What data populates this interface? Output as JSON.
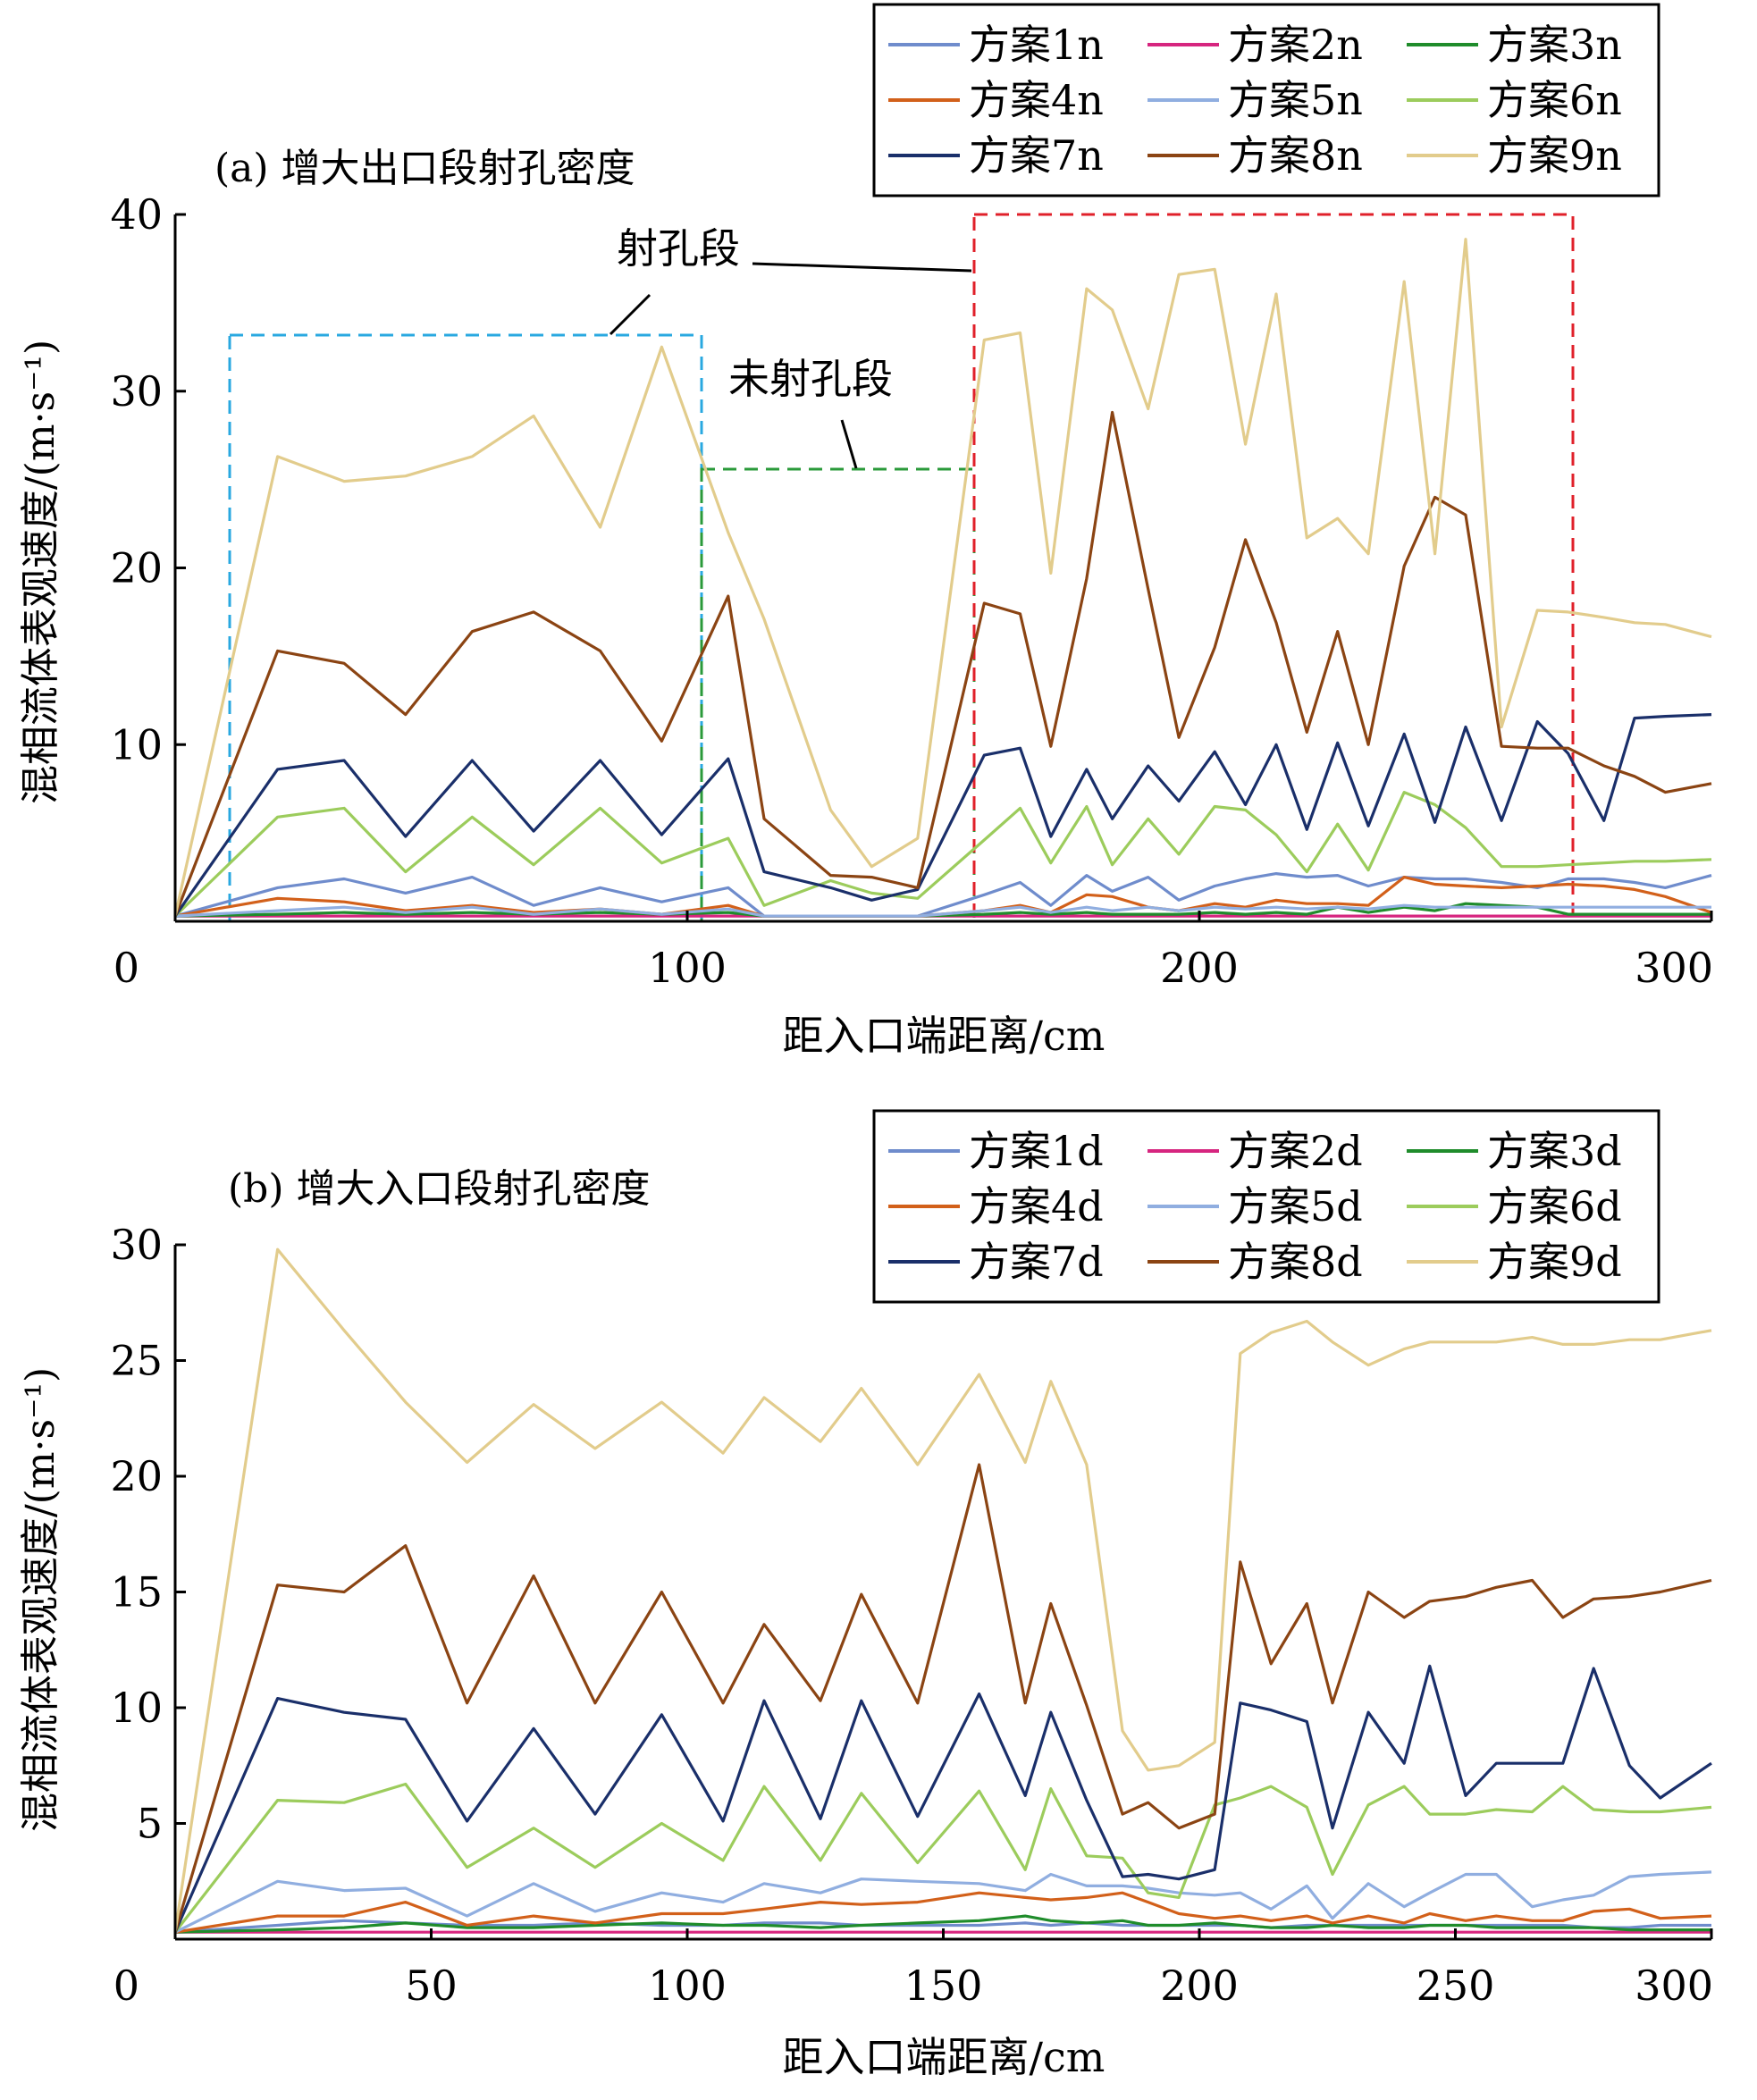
{
  "chart_data": [
    {
      "type": "line",
      "title": "(a) 增大出口段射孔密度",
      "xlabel": "距入口端距离/cm",
      "ylabel": "混相流体表观速度/(m·s⁻¹)",
      "xlim": [
        0,
        300
      ],
      "ylim": [
        0,
        40
      ],
      "xticks": [
        0,
        100,
        200,
        300
      ],
      "yticks": [
        10,
        20,
        30,
        40
      ],
      "grid": false,
      "legend_position": "top-right",
      "annotations": {
        "perforated": "射孔段",
        "unperforated": "未射孔段"
      },
      "regions": [
        {
          "label": "射孔段",
          "x": [
            11,
            103
          ],
          "y": [
            0,
            33.2
          ],
          "color": "#29a8e0"
        },
        {
          "label": "未射孔段",
          "x": [
            103,
            156
          ],
          "y": [
            0,
            25.6
          ],
          "color": "#2a9a3a"
        },
        {
          "label": "射孔段",
          "x": [
            156,
            273
          ],
          "y": [
            0,
            40
          ],
          "color": "#e0202a"
        }
      ],
      "x": [
        0,
        20,
        33,
        45,
        58,
        70,
        83,
        95,
        108,
        115,
        128,
        136,
        145,
        158,
        165,
        171,
        178,
        183,
        190,
        196,
        203,
        209,
        215,
        221,
        227,
        233,
        240,
        246,
        252,
        259,
        266,
        272,
        279,
        285,
        291,
        300
      ],
      "series": [
        {
          "name": "方案1n",
          "color": "#6f8ccc",
          "values": [
            0.3,
            1.9,
            2.4,
            1.6,
            2.5,
            0.9,
            1.9,
            1.1,
            1.9,
            0.3,
            0.3,
            0.3,
            0.3,
            1.5,
            2.2,
            0.9,
            2.6,
            1.7,
            2.5,
            1.2,
            2.0,
            2.4,
            2.7,
            2.5,
            2.6,
            2.0,
            2.5,
            2.4,
            2.4,
            2.2,
            1.9,
            2.4,
            2.4,
            2.2,
            1.9,
            2.6
          ]
        },
        {
          "name": "方案2n",
          "color": "#d6257f",
          "values": [
            0.3,
            0.3,
            0.3,
            0.3,
            0.3,
            0.3,
            0.3,
            0.3,
            0.3,
            0.3,
            0.3,
            0.3,
            0.3,
            0.3,
            0.3,
            0.3,
            0.3,
            0.3,
            0.3,
            0.3,
            0.3,
            0.3,
            0.3,
            0.3,
            0.3,
            0.3,
            0.3,
            0.3,
            0.3,
            0.3,
            0.3,
            0.3,
            0.3,
            0.3,
            0.3,
            0.3
          ]
        },
        {
          "name": "方案3n",
          "color": "#1f8c2b",
          "values": [
            0.3,
            0.4,
            0.5,
            0.4,
            0.5,
            0.4,
            0.5,
            0.4,
            0.5,
            0.3,
            0.3,
            0.3,
            0.3,
            0.4,
            0.5,
            0.4,
            0.5,
            0.4,
            0.4,
            0.4,
            0.5,
            0.4,
            0.5,
            0.4,
            0.8,
            0.5,
            0.8,
            0.6,
            1.0,
            0.9,
            0.8,
            0.4,
            0.4,
            0.4,
            0.4,
            0.4
          ]
        },
        {
          "name": "方案4n",
          "color": "#d2601a",
          "values": [
            0.3,
            1.3,
            1.1,
            0.6,
            0.9,
            0.5,
            0.7,
            0.4,
            0.9,
            0.3,
            0.3,
            0.3,
            0.3,
            0.6,
            0.9,
            0.5,
            1.5,
            1.4,
            0.8,
            0.6,
            1.0,
            0.8,
            1.2,
            1.0,
            1.0,
            0.9,
            2.5,
            2.1,
            2.0,
            1.9,
            2.0,
            2.1,
            2.0,
            1.8,
            1.4,
            0.5
          ]
        },
        {
          "name": "方案5n",
          "color": "#90aee0",
          "values": [
            0.3,
            0.6,
            0.8,
            0.5,
            0.8,
            0.4,
            0.7,
            0.4,
            0.7,
            0.3,
            0.3,
            0.3,
            0.3,
            0.6,
            0.8,
            0.5,
            0.8,
            0.6,
            0.8,
            0.6,
            0.8,
            0.7,
            0.8,
            0.7,
            0.8,
            0.7,
            0.9,
            0.8,
            0.8,
            0.8,
            0.8,
            0.8,
            0.8,
            0.8,
            0.8,
            0.8
          ]
        },
        {
          "name": "方案6n",
          "color": "#9ccc5c",
          "values": [
            0.3,
            5.9,
            6.4,
            2.8,
            5.9,
            3.2,
            6.4,
            3.3,
            4.7,
            0.9,
            2.3,
            1.6,
            1.3,
            4.6,
            6.4,
            3.3,
            6.5,
            3.2,
            5.8,
            3.8,
            6.5,
            6.3,
            4.9,
            2.8,
            5.5,
            2.9,
            7.3,
            6.6,
            5.3,
            3.1,
            3.1,
            3.2,
            3.3,
            3.4,
            3.4,
            3.5
          ]
        },
        {
          "name": "方案7n",
          "color": "#1a2f6a",
          "values": [
            0.3,
            8.6,
            9.1,
            4.8,
            9.1,
            5.1,
            9.1,
            4.9,
            9.2,
            2.8,
            1.9,
            1.2,
            1.8,
            9.4,
            9.8,
            4.8,
            8.6,
            5.8,
            8.8,
            6.8,
            9.6,
            6.6,
            10.0,
            5.2,
            10.1,
            5.4,
            10.6,
            5.6,
            11.0,
            5.7,
            11.3,
            9.5,
            5.7,
            11.5,
            11.6,
            11.7
          ]
        },
        {
          "name": "方案8n",
          "color": "#8b4413",
          "values": [
            0.3,
            15.3,
            14.6,
            11.7,
            16.4,
            17.5,
            15.3,
            10.2,
            18.4,
            5.8,
            2.6,
            2.5,
            1.9,
            18.0,
            17.4,
            9.9,
            19.4,
            28.8,
            18.8,
            10.4,
            15.5,
            21.6,
            16.9,
            10.7,
            16.4,
            10.0,
            20.1,
            24.0,
            23.0,
            9.9,
            9.8,
            9.8,
            8.8,
            8.2,
            7.3,
            7.8
          ]
        },
        {
          "name": "方案9n",
          "color": "#e2cc8c",
          "values": [
            0.3,
            26.3,
            24.9,
            25.2,
            26.3,
            28.6,
            22.3,
            32.5,
            22.0,
            17.1,
            6.3,
            3.1,
            4.7,
            32.9,
            33.3,
            19.7,
            35.8,
            34.6,
            29.0,
            36.6,
            36.9,
            27.0,
            35.5,
            21.7,
            22.8,
            20.8,
            36.2,
            20.8,
            38.6,
            11.0,
            17.6,
            17.5,
            17.2,
            16.9,
            16.8,
            16.1
          ]
        }
      ]
    },
    {
      "type": "line",
      "title": "(b) 增大入口段射孔密度",
      "xlabel": "距入口端距离/cm",
      "ylabel": "混相流体表观速度/(m·s⁻¹)",
      "xlim": [
        0,
        300
      ],
      "ylim": [
        0,
        30
      ],
      "xticks": [
        0,
        50,
        100,
        150,
        200,
        250,
        300
      ],
      "yticks": [
        5,
        10,
        15,
        20,
        25,
        30
      ],
      "grid": false,
      "legend_position": "top-right",
      "x": [
        0,
        20,
        33,
        45,
        57,
        70,
        82,
        95,
        107,
        115,
        126,
        134,
        145,
        157,
        166,
        171,
        178,
        185,
        190,
        196,
        203,
        208,
        214,
        221,
        226,
        233,
        240,
        245,
        252,
        258,
        265,
        271,
        277,
        284,
        290,
        300
      ],
      "series": [
        {
          "name": "方案1d",
          "color": "#6f8ccc",
          "values": [
            0.3,
            0.6,
            0.8,
            0.7,
            0.6,
            0.6,
            0.7,
            0.6,
            0.6,
            0.7,
            0.7,
            0.6,
            0.6,
            0.6,
            0.7,
            0.6,
            0.7,
            0.6,
            0.6,
            0.6,
            0.6,
            0.6,
            0.5,
            0.6,
            0.6,
            0.6,
            0.6,
            0.6,
            0.6,
            0.6,
            0.6,
            0.6,
            0.5,
            0.5,
            0.6,
            0.6
          ]
        },
        {
          "name": "方案2d",
          "color": "#d6257f",
          "values": [
            0.3,
            0.3,
            0.3,
            0.3,
            0.3,
            0.3,
            0.3,
            0.3,
            0.3,
            0.3,
            0.3,
            0.3,
            0.3,
            0.3,
            0.3,
            0.3,
            0.3,
            0.3,
            0.3,
            0.3,
            0.3,
            0.3,
            0.3,
            0.3,
            0.3,
            0.3,
            0.3,
            0.3,
            0.3,
            0.3,
            0.3,
            0.3,
            0.3,
            0.3,
            0.3,
            0.3
          ]
        },
        {
          "name": "方案3d",
          "color": "#1f8c2b",
          "values": [
            0.3,
            0.4,
            0.5,
            0.7,
            0.5,
            0.5,
            0.6,
            0.7,
            0.6,
            0.6,
            0.5,
            0.6,
            0.7,
            0.8,
            1.0,
            0.8,
            0.7,
            0.8,
            0.6,
            0.6,
            0.7,
            0.6,
            0.5,
            0.5,
            0.6,
            0.5,
            0.5,
            0.6,
            0.6,
            0.5,
            0.5,
            0.5,
            0.5,
            0.4,
            0.4,
            0.4
          ]
        },
        {
          "name": "方案4d",
          "color": "#d2601a",
          "values": [
            0.3,
            1.0,
            1.0,
            1.6,
            0.6,
            1.0,
            0.7,
            1.1,
            1.1,
            1.3,
            1.6,
            1.5,
            1.6,
            2.0,
            1.8,
            1.7,
            1.8,
            2.0,
            1.6,
            1.1,
            0.9,
            1.0,
            0.8,
            1.0,
            0.7,
            1.0,
            0.7,
            1.1,
            0.8,
            1.0,
            0.8,
            0.8,
            1.2,
            1.3,
            0.9,
            1.0
          ]
        },
        {
          "name": "方案5d",
          "color": "#90aee0",
          "values": [
            0.3,
            2.5,
            2.1,
            2.2,
            1.0,
            2.4,
            1.2,
            2.0,
            1.6,
            2.4,
            2.0,
            2.6,
            2.5,
            2.4,
            2.1,
            2.8,
            2.3,
            2.3,
            2.2,
            2.0,
            1.9,
            2.0,
            1.3,
            2.3,
            0.9,
            2.4,
            1.4,
            2.0,
            2.8,
            2.8,
            1.4,
            1.7,
            1.9,
            2.7,
            2.8,
            2.9
          ]
        },
        {
          "name": "方案6d",
          "color": "#9ccc5c",
          "values": [
            0.3,
            6.0,
            5.9,
            6.7,
            3.1,
            4.8,
            3.1,
            5.0,
            3.4,
            6.6,
            3.4,
            6.3,
            3.3,
            6.4,
            3.0,
            6.5,
            3.6,
            3.5,
            2.0,
            1.8,
            5.8,
            6.1,
            6.6,
            5.7,
            2.8,
            5.8,
            6.6,
            5.4,
            5.4,
            5.6,
            5.5,
            6.6,
            5.6,
            5.5,
            5.5,
            5.7
          ]
        },
        {
          "name": "方案7d",
          "color": "#1a2f6a",
          "values": [
            0.3,
            10.4,
            9.8,
            9.5,
            5.1,
            9.1,
            5.4,
            9.7,
            5.1,
            10.3,
            5.2,
            10.3,
            5.3,
            10.6,
            6.2,
            9.8,
            6.0,
            2.7,
            2.8,
            2.6,
            3.0,
            10.2,
            9.9,
            9.4,
            4.8,
            9.8,
            7.6,
            11.8,
            6.2,
            7.6,
            7.6,
            7.6,
            11.7,
            7.5,
            6.1,
            7.6
          ]
        },
        {
          "name": "方案8d",
          "color": "#8b4413",
          "values": [
            0.3,
            15.3,
            15.0,
            17.0,
            10.2,
            15.7,
            10.2,
            15.0,
            10.2,
            13.6,
            10.3,
            14.9,
            10.2,
            20.5,
            10.2,
            14.5,
            10.1,
            5.4,
            5.9,
            4.8,
            5.4,
            16.3,
            11.9,
            14.5,
            10.2,
            15.0,
            13.9,
            14.6,
            14.8,
            15.2,
            15.5,
            13.9,
            14.7,
            14.8,
            15.0,
            15.5
          ]
        },
        {
          "name": "方案9d",
          "color": "#e2cc8c",
          "values": [
            0.3,
            29.8,
            26.3,
            23.2,
            20.6,
            23.1,
            21.2,
            23.2,
            21.0,
            23.4,
            21.5,
            23.8,
            20.5,
            24.4,
            20.6,
            24.1,
            20.5,
            9.0,
            7.3,
            7.5,
            8.5,
            25.3,
            26.2,
            26.7,
            25.8,
            24.8,
            25.5,
            25.8,
            25.8,
            25.8,
            26.0,
            25.7,
            25.7,
            25.9,
            25.9,
            26.3
          ]
        }
      ]
    }
  ]
}
